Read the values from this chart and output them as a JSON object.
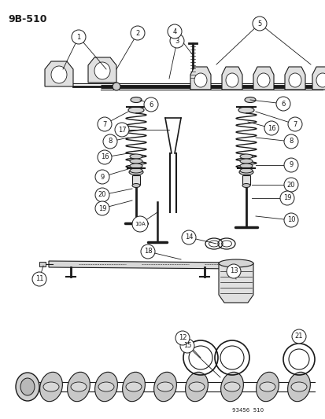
{
  "title": "9B-510",
  "footer": "93456  510",
  "bg": "#ffffff",
  "lc": "#1a1a1a",
  "fig_w": 4.14,
  "fig_h": 5.33,
  "dpi": 100
}
